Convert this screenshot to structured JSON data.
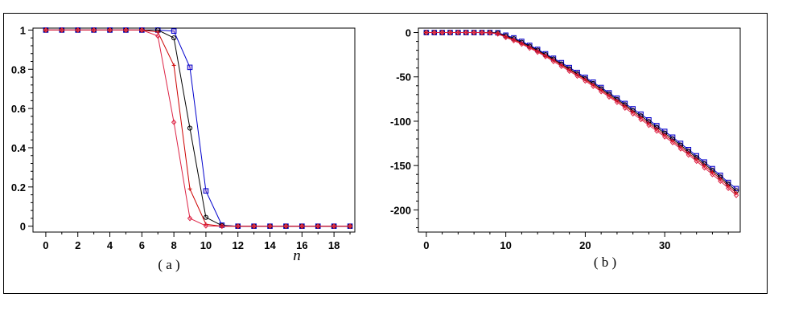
{
  "colors": {
    "background": "#ffffff",
    "axis": "#000000",
    "blue_series": "#0000cc",
    "black_series": "#000000",
    "red_series": "#cc0000",
    "pink_series": "#dd2244",
    "marker_fill": "#aa44aa"
  },
  "chart_data": [
    {
      "type": "line",
      "caption": "( a )",
      "xlabel": "n",
      "ylabel": "",
      "xlim": [
        -0.8,
        19.3
      ],
      "ylim": [
        -0.03,
        1.01
      ],
      "xticks": [
        0,
        2,
        4,
        6,
        8,
        10,
        12,
        14,
        16,
        18
      ],
      "xtick_labels": [
        "0",
        "2",
        "4",
        "6",
        "8",
        "10",
        "12",
        "14",
        "16",
        "18"
      ],
      "yticks": [
        0,
        0.2,
        0.4,
        0.6,
        0.8,
        1
      ],
      "ytick_labels": [
        "0",
        "0.2",
        "0.4",
        "0.6",
        "0.8",
        "1"
      ],
      "grid": false,
      "legend": "none",
      "series": [
        {
          "marker": "square",
          "color": "#0000cc",
          "x": [
            0,
            1,
            2,
            3,
            4,
            5,
            6,
            7,
            8,
            9,
            10,
            11,
            12,
            13,
            14,
            15,
            16,
            17,
            18,
            19
          ],
          "y": [
            1,
            1,
            1,
            1,
            1,
            1,
            1,
            1,
            0.995,
            0.81,
            0.18,
            0.005,
            0,
            0,
            0,
            0,
            0,
            0,
            0,
            0
          ]
        },
        {
          "marker": "circle",
          "color": "#000000",
          "x": [
            0,
            1,
            2,
            3,
            4,
            5,
            6,
            7,
            8,
            9,
            10,
            11,
            12,
            13,
            14,
            15,
            16,
            17,
            18,
            19
          ],
          "y": [
            1,
            1,
            1,
            1,
            1,
            1,
            1,
            1,
            0.96,
            0.5,
            0.045,
            0.003,
            0,
            0,
            0,
            0,
            0,
            0,
            0,
            0
          ]
        },
        {
          "marker": "cross",
          "color": "#cc0000",
          "x": [
            0,
            1,
            2,
            3,
            4,
            5,
            6,
            7,
            8,
            9,
            10,
            11,
            12,
            13,
            14,
            15,
            16,
            17,
            18,
            19
          ],
          "y": [
            1,
            1,
            1,
            1,
            1,
            1,
            1,
            0.99,
            0.82,
            0.19,
            0.01,
            0,
            0,
            0,
            0,
            0,
            0,
            0,
            0,
            0
          ]
        },
        {
          "marker": "diamond",
          "color": "#dd2244",
          "x": [
            0,
            1,
            2,
            3,
            4,
            5,
            6,
            7,
            8,
            9,
            10,
            11,
            12,
            13,
            14,
            15,
            16,
            17,
            18,
            19
          ],
          "y": [
            1,
            1,
            1,
            1,
            1,
            1,
            1,
            0.97,
            0.53,
            0.04,
            0.002,
            0,
            0,
            0,
            0,
            0,
            0,
            0,
            0,
            0
          ]
        }
      ]
    },
    {
      "type": "line",
      "caption": "( b )",
      "xlabel": "",
      "ylabel": "",
      "xlim": [
        -1,
        39.5
      ],
      "ylim": [
        -225,
        5
      ],
      "xticks": [
        0,
        10,
        20,
        30
      ],
      "xtick_labels": [
        "0",
        "10",
        "20",
        "30"
      ],
      "yticks": [
        0,
        -50,
        -100,
        -150,
        -200
      ],
      "ytick_labels": [
        "0",
        "-50",
        "-100",
        "-150",
        "-200"
      ],
      "grid": false,
      "legend": "none",
      "series": [
        {
          "marker": "square",
          "color": "#0000cc",
          "x": [
            0,
            1,
            2,
            3,
            4,
            5,
            6,
            7,
            8,
            9,
            10,
            11,
            12,
            13,
            14,
            15,
            16,
            17,
            18,
            19,
            20,
            21,
            22,
            23,
            24,
            25,
            26,
            27,
            28,
            29,
            30,
            31,
            32,
            33,
            34,
            35,
            36,
            37,
            38,
            39
          ],
          "y": [
            0,
            0,
            0,
            0,
            0,
            0,
            0,
            0,
            0,
            -0.3,
            -3,
            -6,
            -10,
            -14.5,
            -19,
            -24,
            -29,
            -34,
            -39.5,
            -45,
            -50.5,
            -56,
            -62,
            -68,
            -74,
            -80,
            -86,
            -92,
            -98.5,
            -105,
            -111.5,
            -118,
            -125,
            -132,
            -139,
            -146,
            -153.5,
            -161,
            -169,
            -176
          ]
        },
        {
          "marker": "circle",
          "color": "#000000",
          "x": [
            0,
            1,
            2,
            3,
            4,
            5,
            6,
            7,
            8,
            9,
            10,
            11,
            12,
            13,
            14,
            15,
            16,
            17,
            18,
            19,
            20,
            21,
            22,
            23,
            24,
            25,
            26,
            27,
            28,
            29,
            30,
            31,
            32,
            33,
            34,
            35,
            36,
            37,
            38,
            39
          ],
          "y": [
            0,
            0,
            0,
            0,
            0,
            0,
            0,
            0,
            0,
            -0.5,
            -3.8,
            -7,
            -11,
            -15.5,
            -20,
            -25,
            -30,
            -35.5,
            -41,
            -46.5,
            -52,
            -57.5,
            -63.5,
            -69.5,
            -75.5,
            -81.5,
            -88,
            -94,
            -100.5,
            -107,
            -113.5,
            -120,
            -127,
            -134,
            -141,
            -148,
            -155.5,
            -163,
            -171,
            -178.5
          ]
        },
        {
          "marker": "cross",
          "color": "#cc0000",
          "x": [
            0,
            1,
            2,
            3,
            4,
            5,
            6,
            7,
            8,
            9,
            10,
            11,
            12,
            13,
            14,
            15,
            16,
            17,
            18,
            19,
            20,
            21,
            22,
            23,
            24,
            25,
            26,
            27,
            28,
            29,
            30,
            31,
            32,
            33,
            34,
            35,
            36,
            37,
            38,
            39
          ],
          "y": [
            0,
            0,
            0,
            0,
            0,
            0,
            0,
            0,
            -0.2,
            -1,
            -4.6,
            -8,
            -12,
            -16.5,
            -21,
            -26,
            -31,
            -36.5,
            -42,
            -47.5,
            -53,
            -59,
            -65,
            -71,
            -77,
            -83,
            -89.5,
            -96,
            -102.5,
            -109,
            -115.5,
            -122,
            -129,
            -136,
            -143,
            -150,
            -157.5,
            -165,
            -173,
            -181
          ]
        },
        {
          "marker": "diamond",
          "color": "#dd2244",
          "x": [
            0,
            1,
            2,
            3,
            4,
            5,
            6,
            7,
            8,
            9,
            10,
            11,
            12,
            13,
            14,
            15,
            16,
            17,
            18,
            19,
            20,
            21,
            22,
            23,
            24,
            25,
            26,
            27,
            28,
            29,
            30,
            31,
            32,
            33,
            34,
            35,
            36,
            37,
            38,
            39
          ],
          "y": [
            0,
            0,
            0,
            0,
            0,
            0,
            0,
            0,
            -0.3,
            -1.5,
            -5.5,
            -9,
            -13,
            -17.5,
            -22,
            -27,
            -32.5,
            -38,
            -43.5,
            -49,
            -54.5,
            -60.5,
            -66.5,
            -72.5,
            -78.5,
            -85,
            -91.5,
            -98,
            -104.5,
            -111,
            -117.5,
            -124,
            -131,
            -138,
            -145,
            -152.5,
            -160,
            -167.5,
            -175.5,
            -183.5
          ]
        }
      ]
    }
  ]
}
